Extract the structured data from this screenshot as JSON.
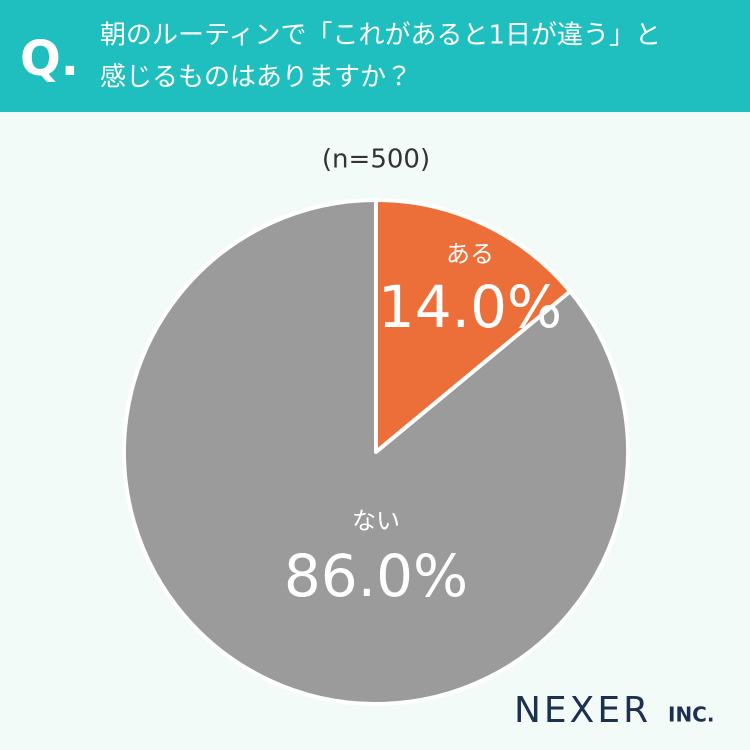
{
  "chart_data": {
    "type": "pie",
    "question_mark": "Q.",
    "title": [
      "朝のルーティンで「これがあると1日が違う」と",
      "感じるものはありますか？"
    ],
    "subtitle": "(n=500)",
    "categories": [
      "ある",
      "ない"
    ],
    "values": [
      14.0,
      86.0
    ],
    "value_labels": [
      "14.0%",
      "86.0%"
    ],
    "colors": [
      "#ec6f3a",
      "#9b9b9b"
    ]
  },
  "logo": {
    "name": "NEXER",
    "suffix": "INC."
  }
}
